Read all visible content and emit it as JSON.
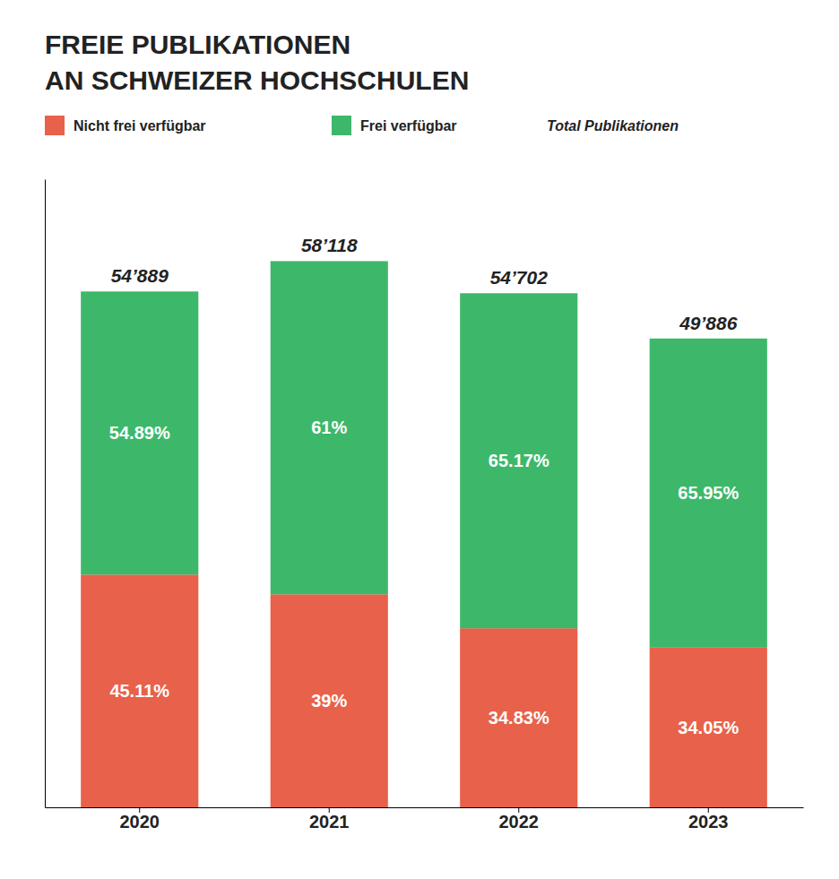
{
  "chart_data": {
    "type": "bar",
    "stacked": true,
    "title": [
      "FREIE PUBLIKATIONEN",
      "AN SCHWEIZER HOCHSCHULEN"
    ],
    "categories": [
      "2020",
      "2021",
      "2022",
      "2023"
    ],
    "series": [
      {
        "name": "Nicht frei verfügbar",
        "color": "#E8614A",
        "values": [
          24760.4279,
          22666.02,
          19052.7066,
          16986.183
        ],
        "shares": [
          {
            "value": 45.11,
            "label": "45.11%"
          },
          {
            "value": 39,
            "label": "39%"
          },
          {
            "value": 34.83,
            "label": "34.83%"
          },
          {
            "value": 34.05,
            "label": "34.05%"
          }
        ]
      },
      {
        "name": "Frei verfügbar",
        "color": "#3DB86B",
        "values": [
          30128.5721,
          35451.98,
          35649.2934,
          32899.817
        ],
        "shares": [
          {
            "value": 54.89,
            "label": "54.89%"
          },
          {
            "value": 61,
            "label": "61%"
          },
          {
            "value": 65.17,
            "label": "65.17%"
          },
          {
            "value": 65.95,
            "label": "65.95%"
          }
        ]
      }
    ],
    "totals": {
      "name": "Total Publikationen",
      "values": [
        54889,
        58118,
        54702,
        49886
      ],
      "value_labels": [
        "54’889",
        "58’118",
        "54’702",
        "49’886"
      ]
    },
    "ylim": [
      0,
      66835.7
    ],
    "yticks": [],
    "tick_labels": "x",
    "legend": "top"
  }
}
